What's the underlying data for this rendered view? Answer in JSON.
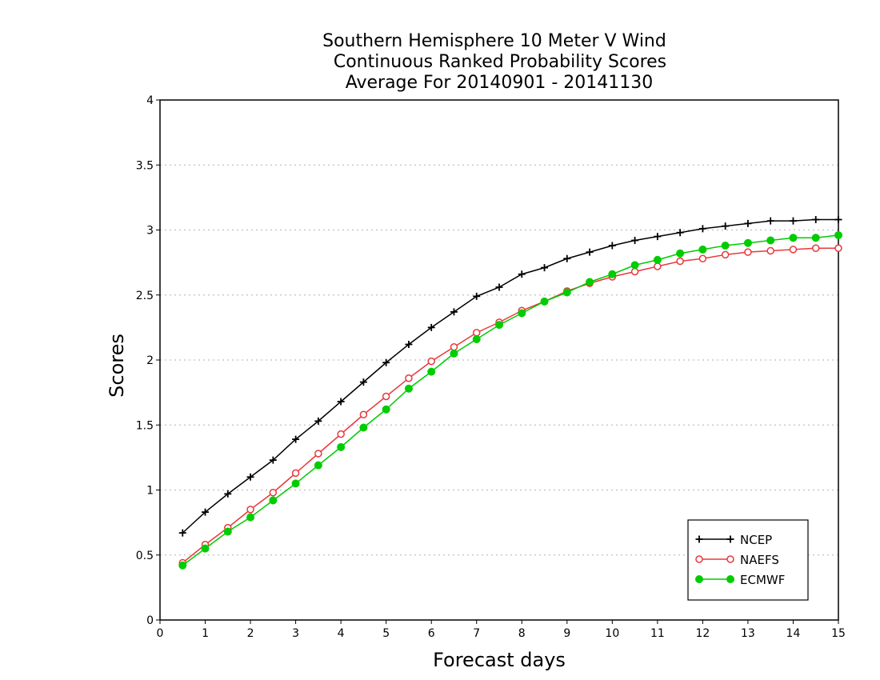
{
  "chart_data": {
    "type": "line",
    "title": [
      "Southern Hemisphere 10 Meter V Wind",
      "Continuous Ranked Probability Scores",
      "Average For 20140901 - 20141130"
    ],
    "xlabel": "Forecast days",
    "ylabel": "Scores",
    "xlim": [
      0,
      15
    ],
    "ylim": [
      0,
      4
    ],
    "xticks": [
      "0",
      "1",
      "2",
      "3",
      "4",
      "5",
      "6",
      "7",
      "8",
      "9",
      "10",
      "11",
      "12",
      "13",
      "14",
      "15"
    ],
    "yticks": [
      "0",
      "0.5",
      "1",
      "1.5",
      "2",
      "2.5",
      "3",
      "3.5",
      "4"
    ],
    "grid": "horizontal dotted",
    "legend_position": "bottom-right",
    "x": [
      0.5,
      1,
      1.5,
      2,
      2.5,
      3,
      3.5,
      4,
      4.5,
      5,
      5.5,
      6,
      6.5,
      7,
      7.5,
      8,
      8.5,
      9,
      9.5,
      10,
      10.5,
      11,
      11.5,
      12,
      12.5,
      13,
      13.5,
      14,
      14.5,
      15
    ],
    "series": [
      {
        "name": "NCEP",
        "color": "#000000",
        "marker": "plus",
        "values": [
          0.67,
          0.83,
          0.97,
          1.1,
          1.23,
          1.39,
          1.53,
          1.68,
          1.83,
          1.98,
          2.12,
          2.25,
          2.37,
          2.49,
          2.56,
          2.66,
          2.71,
          2.78,
          2.83,
          2.88,
          2.92,
          2.95,
          2.98,
          3.01,
          3.03,
          3.05,
          3.07,
          3.07,
          3.08,
          3.08
        ]
      },
      {
        "name": "NAEFS",
        "color": "#e8383d",
        "marker": "open-circle",
        "values": [
          0.44,
          0.58,
          0.71,
          0.85,
          0.98,
          1.13,
          1.28,
          1.43,
          1.58,
          1.72,
          1.86,
          1.99,
          2.1,
          2.21,
          2.29,
          2.38,
          2.45,
          2.53,
          2.59,
          2.64,
          2.68,
          2.72,
          2.76,
          2.78,
          2.81,
          2.83,
          2.84,
          2.85,
          2.86,
          2.86
        ]
      },
      {
        "name": "ECMWF",
        "color": "#00cc00",
        "marker": "filled-circle",
        "values": [
          0.42,
          0.55,
          0.68,
          0.79,
          0.92,
          1.05,
          1.19,
          1.33,
          1.48,
          1.62,
          1.78,
          1.91,
          2.05,
          2.16,
          2.27,
          2.36,
          2.45,
          2.52,
          2.6,
          2.66,
          2.73,
          2.77,
          2.82,
          2.85,
          2.88,
          2.9,
          2.92,
          2.94,
          2.94,
          2.96
        ]
      }
    ]
  }
}
